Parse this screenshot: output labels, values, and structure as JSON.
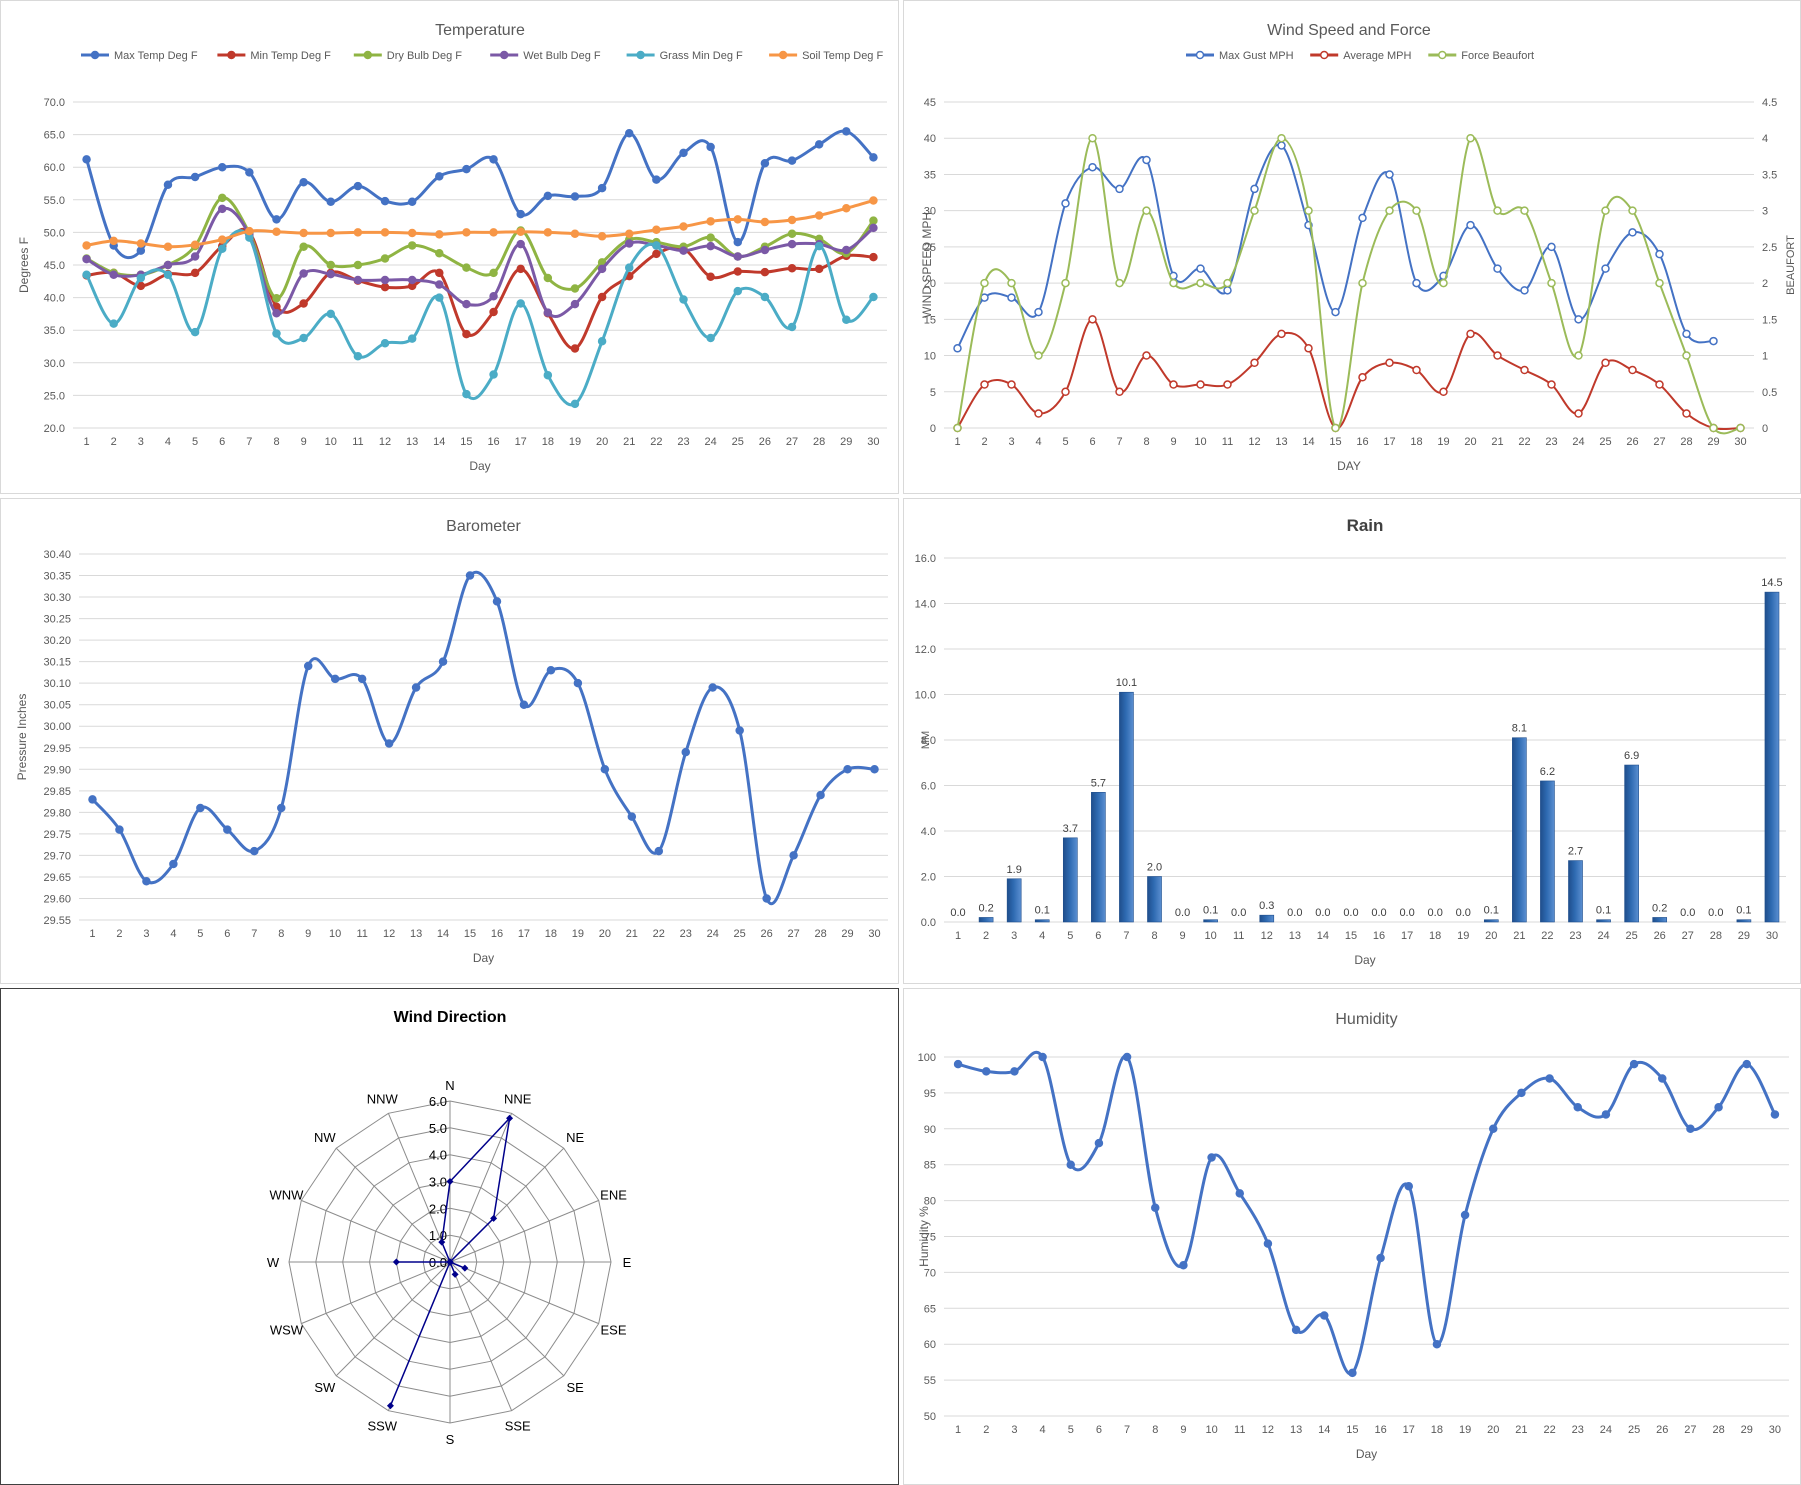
{
  "chart_data": [
    {
      "id": "temp",
      "type": "line",
      "title": "Temperature",
      "xlabel": "Day",
      "ylabel": "Degrees F",
      "ylim": [
        20,
        70
      ],
      "ytick_step": 5,
      "ytick_decimals": 1,
      "x": [
        1,
        2,
        3,
        4,
        5,
        6,
        7,
        8,
        9,
        10,
        11,
        12,
        13,
        14,
        15,
        16,
        17,
        18,
        19,
        20,
        21,
        22,
        23,
        24,
        25,
        26,
        27,
        28,
        29,
        30
      ],
      "legend_position": "top",
      "series": [
        {
          "name": "Max Temp Deg F",
          "color": "#4472c4",
          "values": [
            61.2,
            48.0,
            47.2,
            57.3,
            58.5,
            60.0,
            59.2,
            52.0,
            57.7,
            54.7,
            57.1,
            54.8,
            54.7,
            58.6,
            59.7,
            61.2,
            52.8,
            55.6,
            55.5,
            56.8,
            65.2,
            58.1,
            62.2,
            63.1,
            48.5,
            60.6,
            61.0,
            63.5,
            65.5,
            61.5
          ]
        },
        {
          "name": "Min Temp Deg F",
          "color": "#c0392b",
          "values": [
            43.4,
            43.8,
            41.8,
            43.6,
            43.8,
            47.9,
            50.0,
            38.6,
            39.1,
            43.8,
            42.6,
            41.6,
            41.8,
            43.8,
            34.4,
            37.8,
            44.4,
            37.6,
            32.2,
            40.1,
            43.3,
            46.7,
            47.5,
            43.2,
            44.0,
            43.9,
            44.5,
            44.4,
            46.4,
            46.2
          ]
        },
        {
          "name": "Dry Bulb Deg F",
          "color": "#8fb443",
          "values": [
            46.0,
            43.8,
            43.5,
            45.0,
            47.9,
            55.3,
            49.9,
            39.9,
            47.8,
            45.0,
            45.0,
            46.0,
            48.0,
            46.8,
            44.6,
            43.8,
            50.3,
            43.0,
            41.4,
            45.4,
            48.9,
            48.5,
            47.8,
            49.2,
            46.3,
            47.8,
            49.8,
            49.0,
            46.8,
            51.8
          ]
        },
        {
          "name": "Wet Bulb Deg F",
          "color": "#7b59a6",
          "values": [
            45.9,
            43.5,
            43.5,
            45.0,
            46.3,
            53.6,
            49.6,
            37.6,
            43.7,
            43.6,
            42.7,
            42.7,
            42.7,
            42.0,
            39.0,
            40.2,
            48.2,
            37.7,
            39.0,
            44.4,
            48.3,
            48.0,
            47.2,
            47.9,
            46.3,
            47.3,
            48.2,
            48.2,
            47.3,
            50.7
          ]
        },
        {
          "name": "Grass Min Deg F",
          "color": "#4bacc6",
          "values": [
            43.5,
            36.0,
            43.0,
            43.5,
            34.7,
            47.5,
            49.2,
            34.5,
            33.8,
            37.5,
            31.0,
            33.0,
            33.7,
            40.0,
            25.2,
            28.2,
            39.1,
            28.1,
            23.7,
            33.3,
            44.6,
            48.0,
            39.7,
            33.8,
            41.0,
            40.1,
            35.5,
            47.9,
            36.6,
            40.1
          ]
        },
        {
          "name": "Soil Temp Deg F",
          "color": "#f79646",
          "values": [
            48.0,
            48.7,
            48.3,
            47.8,
            48.1,
            48.9,
            50.2,
            50.1,
            49.9,
            49.9,
            50.0,
            50.0,
            49.9,
            49.7,
            50.0,
            50.0,
            50.1,
            50.0,
            49.8,
            49.4,
            49.8,
            50.4,
            50.9,
            51.7,
            52.0,
            51.6,
            51.9,
            52.6,
            53.7,
            54.9
          ]
        }
      ]
    },
    {
      "id": "wind",
      "type": "line",
      "title": "Wind Speed and Force",
      "xlabel": "DAY",
      "ylabel": "WIND SPEED MPH",
      "y2label": "BEAUFORT",
      "ylim": [
        0,
        45
      ],
      "y2lim": [
        0,
        4.5
      ],
      "ytick_step": 5,
      "y2tick_step": 0.5,
      "x": [
        1,
        2,
        3,
        4,
        5,
        6,
        7,
        8,
        9,
        10,
        11,
        12,
        13,
        14,
        15,
        16,
        17,
        18,
        19,
        20,
        21,
        22,
        23,
        24,
        25,
        26,
        27,
        28,
        29,
        30
      ],
      "legend_position": "top",
      "series": [
        {
          "name": "Max Gust MPH",
          "color": "#4472c4",
          "axis": "left",
          "values": [
            11,
            18,
            18,
            16,
            31,
            36,
            33,
            37,
            21,
            22,
            19,
            33,
            39,
            28,
            16,
            29,
            35,
            20,
            21,
            28,
            22,
            19,
            25,
            15,
            22,
            27,
            24,
            13,
            12,
            null
          ]
        },
        {
          "name": "Average MPH",
          "color": "#c0392b",
          "axis": "left",
          "values": [
            0,
            6,
            6,
            2,
            5,
            15,
            5,
            10,
            6,
            6,
            6,
            9,
            13,
            11,
            0,
            7,
            9,
            8,
            5,
            13,
            10,
            8,
            6,
            2,
            9,
            8,
            6,
            2,
            0,
            0
          ]
        },
        {
          "name": "Force Beaufort",
          "color": "#9bbb59",
          "axis": "right",
          "values": [
            0,
            2,
            2,
            1,
            2,
            4,
            2,
            3,
            2,
            2,
            2,
            3,
            4,
            3,
            0,
            2,
            3,
            3,
            2,
            4,
            3,
            3,
            2,
            1,
            3,
            3,
            2,
            1,
            0,
            0
          ]
        }
      ]
    },
    {
      "id": "baro",
      "type": "line",
      "title": "Barometer",
      "xlabel": "Day",
      "ylabel": "Pressure Inches",
      "ylim": [
        29.55,
        30.4
      ],
      "ytick_step": 0.05,
      "ytick_decimals": 2,
      "x": [
        1,
        2,
        3,
        4,
        5,
        6,
        7,
        8,
        9,
        10,
        11,
        12,
        13,
        14,
        15,
        16,
        17,
        18,
        19,
        20,
        21,
        22,
        23,
        24,
        25,
        26,
        27,
        28,
        29,
        30
      ],
      "series": [
        {
          "name": "Barometer",
          "color": "#4472c4",
          "values": [
            29.83,
            29.76,
            29.64,
            29.68,
            29.81,
            29.76,
            29.71,
            29.81,
            30.14,
            30.11,
            30.11,
            29.96,
            30.09,
            30.15,
            30.35,
            30.29,
            30.05,
            30.13,
            30.1,
            29.9,
            29.79,
            29.71,
            29.94,
            30.09,
            29.99,
            29.6,
            29.7,
            29.84,
            29.9,
            29.9
          ]
        }
      ]
    },
    {
      "id": "rain",
      "type": "bar",
      "title": "Rain",
      "xlabel": "Day",
      "ylabel": "MM",
      "ylim": [
        0,
        16
      ],
      "ytick_step": 2,
      "ytick_decimals": 1,
      "categories": [
        1,
        2,
        3,
        4,
        5,
        6,
        7,
        8,
        9,
        10,
        11,
        12,
        13,
        14,
        15,
        16,
        17,
        18,
        19,
        20,
        21,
        22,
        23,
        24,
        25,
        26,
        27,
        28,
        29,
        30
      ],
      "values": [
        0.0,
        0.2,
        1.9,
        0.1,
        3.7,
        5.7,
        10.1,
        2.0,
        0.0,
        0.1,
        0.0,
        0.3,
        0.0,
        0.0,
        0.0,
        0.0,
        0.0,
        0.0,
        0.0,
        0.1,
        8.1,
        6.2,
        2.7,
        0.1,
        6.9,
        0.2,
        0.0,
        0.0,
        0.1,
        14.5
      ],
      "data_labels": [
        "0.0",
        "0.2",
        "1.9",
        "0.1",
        "3.7",
        "5.7",
        "10.1",
        "2.0",
        "0.0",
        "0.1",
        "0.0",
        "0.3",
        "0.0",
        "0.0",
        "0.0",
        "0.0",
        "0.0",
        "0.0",
        "0.0",
        "0.1",
        "8.1",
        "6.2",
        "2.7",
        "0.1",
        "6.9",
        "0.2",
        "0.0",
        "0.0",
        "0.1",
        "14.5"
      ],
      "color": "#2e6ab1"
    },
    {
      "id": "dir",
      "type": "radar",
      "title": "Wind Direction",
      "categories": [
        "N",
        "NNE",
        "NE",
        "ENE",
        "E",
        "ESE",
        "SE",
        "SSE",
        "S",
        "SSW",
        "SW",
        "WSW",
        "W",
        "WNW",
        "NW",
        "NNW"
      ],
      "values": [
        3.0,
        5.8,
        2.3,
        0,
        0,
        0.6,
        0,
        0.5,
        0,
        5.8,
        0,
        0,
        2.0,
        0,
        0,
        0.8
      ],
      "rlim": [
        0,
        6
      ],
      "tick_labels": [
        "0.0",
        "1.0",
        "2.0",
        "3.0",
        "4.0",
        "5.0",
        "6.0"
      ],
      "color": "#00008b"
    },
    {
      "id": "hum",
      "type": "line",
      "title": "Humidity",
      "xlabel": "Day",
      "ylabel": "Humidity %",
      "ylim": [
        50,
        100
      ],
      "ytick_step": 5,
      "ytick_decimals": 0,
      "x": [
        1,
        2,
        3,
        4,
        5,
        6,
        7,
        8,
        9,
        10,
        11,
        12,
        13,
        14,
        15,
        16,
        17,
        18,
        19,
        20,
        21,
        22,
        23,
        24,
        25,
        26,
        27,
        28,
        29,
        30
      ],
      "series": [
        {
          "name": "Humidity",
          "color": "#4472c4",
          "values": [
            99,
            98,
            98,
            100,
            85,
            88,
            100,
            79,
            71,
            86,
            81,
            74,
            62,
            64,
            56,
            72,
            82,
            60,
            78,
            90,
            95,
            97,
            93,
            92,
            99,
            97,
            90,
            93,
            99,
            92
          ]
        }
      ]
    }
  ]
}
